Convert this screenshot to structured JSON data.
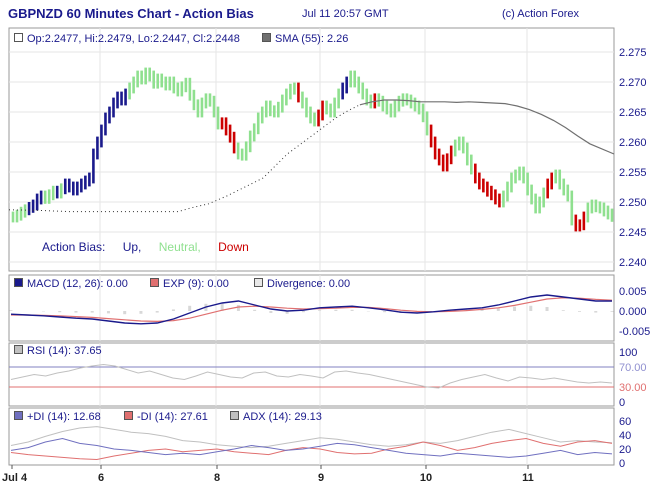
{
  "header": {
    "title": "GBPNZD 60 Minutes Chart - Action Bias",
    "timestamp": "Jul 11 20:57 GMT",
    "copyright": "(c) Action Forex"
  },
  "legend": {
    "ohlc": "Op:2.2477, Hi:2.2479, Lo:2.2447, Cl:2.2448",
    "sma": "SMA (55): 2.26",
    "bias_label": "Action Bias:",
    "bias_up": "Up,",
    "bias_neutral": "Neutral,",
    "bias_down": "Down",
    "macd": "MACD (12, 26): 0.00",
    "exp": "EXP (9): 0.00",
    "divergence": "Divergence: 0.00",
    "rsi": "RSI (14): 37.65",
    "pdi": "+DI (14): 12.68",
    "mdi": "-DI (14): 27.61",
    "adx": "ADX (14): 29.13"
  },
  "colors": {
    "up": "#1a1a8c",
    "neutral": "#8fe08f",
    "down": "#cc0000",
    "sma": "#707070",
    "macd": "#1a1a8c",
    "exp": "#e07070",
    "divergence": "#d8d8d8",
    "rsi": "#c0c0c0",
    "pdi": "#7070c0",
    "mdi": "#e07070",
    "adx": "#c0c0c0",
    "text": "#1a1a8c"
  },
  "chart_data": [
    {
      "type": "candlestick",
      "title": "GBPNZD 60 Minutes Chart - Action Bias",
      "x_tick_labels": [
        "Jul 4",
        "6",
        "8",
        "9",
        "10",
        "11"
      ],
      "y_tick_labels": [
        "2.275",
        "2.270",
        "2.265",
        "2.260",
        "2.255",
        "2.250",
        "2.245",
        "2.240"
      ],
      "ylim": [
        2.24,
        2.277
      ],
      "grid": true,
      "bias_sequence": "NNNNUUUUNNNUNUUUUUUUUUUUUUUUUNNNNNNNNNNNNNNNNNNNNNNNDDDDNNNNNNNNNNNNNNNDNNNNDDNNNNUUNNNNNNDNNNNNNNNNNNNNDDDDDDNNNNNDDDDDDDNNNNNNNNNNNDDNNNNNDDDNNNNN",
      "close": [
        2.2475,
        2.2478,
        2.2483,
        2.2487,
        2.2491,
        2.2495,
        2.2505,
        2.251,
        2.2506,
        2.2512,
        2.2518,
        2.2515,
        2.2522,
        2.253,
        2.2525,
        2.252,
        2.2525,
        2.253,
        2.2535,
        2.254,
        2.258,
        2.26,
        2.262,
        2.264,
        2.265,
        2.2665,
        2.2675,
        2.267,
        2.268,
        2.269,
        2.27,
        2.271,
        2.2705,
        2.2715,
        2.271,
        2.2698,
        2.2705,
        2.27,
        2.2695,
        2.27,
        2.269,
        2.2685,
        2.2692,
        2.2698,
        2.2678,
        2.2662,
        2.265,
        2.2665,
        2.2672,
        2.2668,
        2.265,
        2.263,
        2.2632,
        2.262,
        2.2608,
        2.259,
        2.258,
        2.2578,
        2.2592,
        2.261,
        2.2622,
        2.264,
        2.265,
        2.266,
        2.2652,
        2.265,
        2.2658,
        2.267,
        2.268,
        2.2688,
        2.269,
        2.2675,
        2.2665,
        2.265,
        2.264,
        2.2635,
        2.2645,
        2.266,
        2.2655,
        2.265,
        2.2665,
        2.268,
        2.269,
        2.27,
        2.271,
        2.27,
        2.269,
        2.268,
        2.267,
        2.2665,
        2.2672,
        2.2668,
        2.266,
        2.2655,
        2.265,
        2.266,
        2.2668,
        2.2672,
        2.267,
        2.2665,
        2.266,
        2.2655,
        2.2642,
        2.262,
        2.26,
        2.258,
        2.257,
        2.256,
        2.2572,
        2.2585,
        2.2595,
        2.26,
        2.259,
        2.257,
        2.2555,
        2.254,
        2.253,
        2.2525,
        2.2518,
        2.2512,
        2.2505,
        2.25,
        2.251,
        2.2525,
        2.254,
        2.2545,
        2.255,
        2.254,
        2.252,
        2.2505,
        2.249,
        2.25,
        2.2515,
        2.253,
        2.254,
        2.2545,
        2.253,
        2.252,
        2.251,
        2.247,
        2.246,
        2.2462,
        2.2475,
        2.249,
        2.2495,
        2.2492,
        2.249,
        2.2485,
        2.248,
        2.2476
      ],
      "sma_y": [
        2.2487,
        2.2486,
        2.2484,
        2.2484,
        2.2484,
        2.2484,
        2.2484,
        2.2484,
        2.249,
        2.2497,
        2.251,
        2.2525,
        2.254,
        2.256,
        2.258,
        2.2595,
        2.261,
        2.2625,
        2.264,
        2.2652,
        2.2662,
        2.2667,
        2.267,
        2.267,
        2.2669,
        2.2667,
        2.2667,
        2.2667,
        2.2666,
        2.2667,
        2.2666,
        2.2665,
        2.2664,
        2.266,
        2.2654,
        2.2646,
        2.2636,
        2.2624,
        2.261,
        2.2597,
        2.258
      ],
      "sma_x_frac": [
        0.0,
        0.05,
        0.1,
        0.15,
        0.2,
        0.22,
        0.25,
        0.28,
        0.3,
        0.33,
        0.36,
        0.39,
        0.42,
        0.44,
        0.46,
        0.48,
        0.5,
        0.52,
        0.54,
        0.56,
        0.58,
        0.6,
        0.62,
        0.64,
        0.66,
        0.68,
        0.7,
        0.72,
        0.74,
        0.76,
        0.78,
        0.8,
        0.82,
        0.84,
        0.86,
        0.88,
        0.9,
        0.92,
        0.94,
        0.96,
        1.0
      ]
    },
    {
      "type": "line",
      "title": "MACD (12, 26)",
      "y_tick_labels": [
        "0.005",
        "0.000",
        "-0.005"
      ],
      "ylim": [
        -0.0065,
        0.0065
      ],
      "series": [
        {
          "name": "MACD (12, 26)",
          "values": [
            -0.0008,
            -0.001,
            -0.0012,
            -0.0015,
            -0.0018,
            -0.002,
            -0.0025,
            -0.003,
            -0.0032,
            -0.003,
            -0.002,
            -0.0005,
            0.001,
            0.002,
            0.0025,
            0.0015,
            0.0005,
            0.0,
            0.0002,
            0.0008,
            0.001,
            0.0012,
            0.0008,
            0.0003,
            -0.0003,
            -0.0005,
            -0.0002,
            0.0002,
            0.0005,
            0.0008,
            0.0015,
            0.0025,
            0.0035,
            0.004,
            0.0035,
            0.003,
            0.0025,
            0.0025
          ]
        },
        {
          "name": "EXP (9)",
          "values": [
            -0.001,
            -0.001,
            -0.0011,
            -0.0012,
            -0.0014,
            -0.0016,
            -0.0019,
            -0.0022,
            -0.0025,
            -0.0026,
            -0.0024,
            -0.0018,
            -0.0008,
            0.0002,
            0.001,
            0.0012,
            0.001,
            0.0007,
            0.0005,
            0.0006,
            0.0007,
            0.0009,
            0.0009,
            0.0006,
            0.0002,
            -0.0001,
            -0.0002,
            -0.0001,
            0.0001,
            0.0004,
            0.0008,
            0.0014,
            0.0022,
            0.003,
            0.0033,
            0.0032,
            0.0029,
            0.0027
          ]
        },
        {
          "name": "Divergence",
          "values": [
            0.0002,
            0.0,
            -0.0001,
            -0.0003,
            -0.0004,
            -0.0004,
            -0.0006,
            -0.0008,
            -0.0007,
            -0.0004,
            0.0004,
            0.0013,
            0.0018,
            0.0018,
            0.0015,
            0.0003,
            -0.0005,
            -0.0007,
            -0.0003,
            0.0002,
            0.0003,
            0.0003,
            -0.0001,
            -0.0003,
            -0.0005,
            -0.0004,
            0.0,
            0.0003,
            0.0004,
            0.0004,
            0.0007,
            0.0011,
            0.0013,
            0.001,
            0.0002,
            -0.0002,
            -0.0004,
            -0.0002
          ]
        }
      ]
    },
    {
      "type": "line",
      "title": "RSI (14)",
      "y_tick_labels": [
        "100",
        "70.00",
        "30.00",
        "0"
      ],
      "ylim": [
        0,
        100
      ],
      "series": [
        {
          "name": "RSI (14)",
          "values": [
            45,
            50,
            55,
            52,
            58,
            62,
            68,
            72,
            75,
            72,
            65,
            58,
            62,
            55,
            48,
            45,
            52,
            60,
            55,
            50,
            48,
            58,
            60,
            52,
            50,
            55,
            52,
            48,
            60,
            62,
            58,
            55,
            50,
            45,
            40,
            35,
            30,
            28,
            38,
            45,
            50,
            55,
            48,
            42,
            50,
            48,
            45,
            48,
            44,
            40,
            38,
            40,
            38
          ]
        }
      ]
    },
    {
      "type": "line",
      "title": "ADX",
      "y_tick_labels": [
        "60",
        "40",
        "20",
        "0"
      ],
      "ylim": [
        0,
        70
      ],
      "series": [
        {
          "name": "+DI (14)",
          "values": [
            18,
            22,
            30,
            35,
            28,
            25,
            20,
            18,
            15,
            12,
            14,
            12,
            16,
            20,
            25,
            22,
            18,
            20,
            24,
            28,
            26,
            22,
            18,
            14,
            12,
            10,
            14,
            12,
            10,
            8,
            10,
            14,
            18,
            12,
            15,
            13
          ]
        },
        {
          "name": "-DI (14)",
          "values": [
            15,
            12,
            10,
            8,
            6,
            5,
            10,
            14,
            18,
            20,
            16,
            18,
            20,
            16,
            14,
            12,
            18,
            22,
            20,
            15,
            13,
            14,
            20,
            24,
            30,
            25,
            18,
            22,
            28,
            32,
            35,
            28,
            24,
            30,
            32,
            28
          ]
        },
        {
          "name": "ADX (14)",
          "values": [
            25,
            30,
            38,
            45,
            50,
            52,
            48,
            44,
            42,
            38,
            32,
            30,
            26,
            24,
            22,
            24,
            28,
            32,
            36,
            34,
            30,
            26,
            24,
            26,
            30,
            28,
            32,
            38,
            44,
            48,
            42,
            36,
            30,
            32,
            30,
            29
          ]
        }
      ]
    }
  ]
}
